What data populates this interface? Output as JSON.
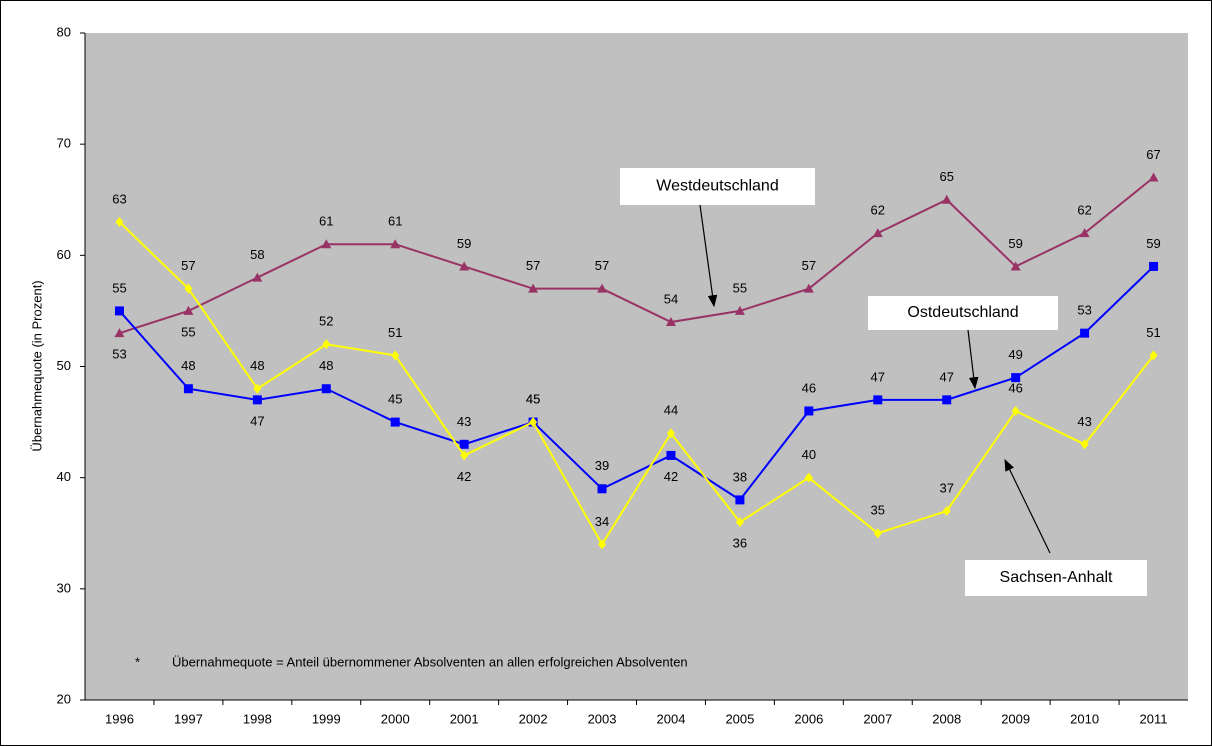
{
  "chart_data": {
    "type": "line",
    "y_label": "Übernahmequote (in Prozent)",
    "categories": [
      "1996",
      "1997",
      "1998",
      "1999",
      "2000",
      "2001",
      "2002",
      "2003",
      "2004",
      "2005",
      "2006",
      "2007",
      "2008",
      "2009",
      "2010",
      "2011"
    ],
    "series": [
      {
        "name": "Westdeutschland",
        "color": "#993366",
        "marker": "triangle",
        "values": [
          53,
          55,
          58,
          61,
          61,
          59,
          57,
          57,
          54,
          55,
          57,
          62,
          65,
          59,
          62,
          67
        ]
      },
      {
        "name": "Ostdeutschland",
        "color": "#0000ff",
        "marker": "square",
        "values": [
          55,
          48,
          47,
          48,
          45,
          43,
          45,
          39,
          42,
          38,
          46,
          47,
          47,
          49,
          53,
          59
        ]
      },
      {
        "name": "Sachsen-Anhalt",
        "color": "#ffff00",
        "marker": "diamond",
        "values": [
          63,
          57,
          48,
          52,
          51,
          42,
          45,
          34,
          44,
          36,
          40,
          35,
          37,
          46,
          43,
          51
        ]
      }
    ],
    "ylim": [
      20,
      80
    ],
    "yticks": [
      20,
      30,
      40,
      50,
      60,
      70,
      80
    ],
    "background": "#c0c0c0",
    "footnote_marker": "*",
    "footnote": "Übernahmequote = Anteil übernommener Absolventen an allen erfolgreichen Absolventen"
  }
}
